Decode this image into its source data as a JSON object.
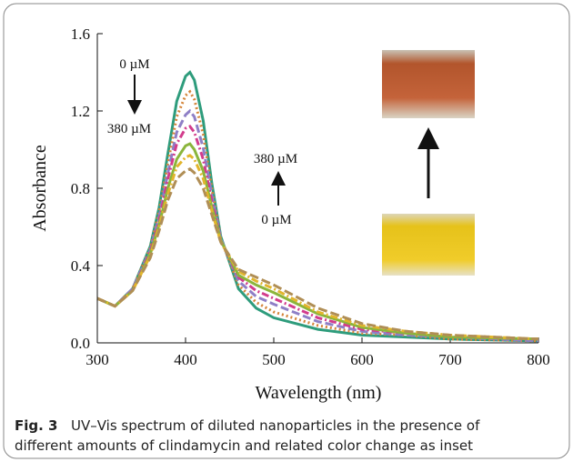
{
  "chart_data": {
    "type": "line",
    "x_label": "Wavelength (nm)",
    "y_label": "Absorbance",
    "x": [
      300,
      320,
      340,
      360,
      370,
      380,
      390,
      400,
      405,
      410,
      420,
      430,
      440,
      460,
      480,
      500,
      550,
      600,
      650,
      700,
      800
    ],
    "series": [
      {
        "color": "#2e9c7c",
        "dash": "none",
        "values": [
          0.23,
          0.19,
          0.28,
          0.5,
          0.7,
          0.98,
          1.25,
          1.38,
          1.4,
          1.36,
          1.15,
          0.82,
          0.55,
          0.28,
          0.18,
          0.13,
          0.07,
          0.04,
          0.03,
          0.02,
          0.01
        ]
      },
      {
        "color": "#d4843a",
        "dash": "2,3",
        "values": [
          0.23,
          0.19,
          0.28,
          0.49,
          0.68,
          0.93,
          1.17,
          1.28,
          1.3,
          1.26,
          1.08,
          0.79,
          0.54,
          0.3,
          0.21,
          0.16,
          0.09,
          0.05,
          0.04,
          0.02,
          0.01
        ]
      },
      {
        "color": "#8e7fc6",
        "dash": "9,4",
        "values": [
          0.23,
          0.19,
          0.28,
          0.48,
          0.65,
          0.88,
          1.09,
          1.18,
          1.2,
          1.17,
          1.01,
          0.76,
          0.54,
          0.32,
          0.24,
          0.2,
          0.11,
          0.06,
          0.04,
          0.03,
          0.01
        ]
      },
      {
        "color": "#d23c8c",
        "dash": "8,3,2,3",
        "values": [
          0.23,
          0.19,
          0.27,
          0.47,
          0.63,
          0.85,
          1.03,
          1.11,
          1.12,
          1.09,
          0.95,
          0.73,
          0.53,
          0.34,
          0.27,
          0.23,
          0.13,
          0.07,
          0.05,
          0.03,
          0.02
        ]
      },
      {
        "color": "#8bb53c",
        "dash": "none",
        "values": [
          0.23,
          0.19,
          0.27,
          0.46,
          0.61,
          0.8,
          0.95,
          1.02,
          1.03,
          1.0,
          0.89,
          0.7,
          0.53,
          0.35,
          0.3,
          0.26,
          0.15,
          0.08,
          0.05,
          0.03,
          0.02
        ]
      },
      {
        "color": "#e2b52c",
        "dash": "8,3,2,3",
        "values": [
          0.23,
          0.19,
          0.27,
          0.45,
          0.6,
          0.77,
          0.91,
          0.96,
          0.97,
          0.95,
          0.85,
          0.68,
          0.52,
          0.37,
          0.32,
          0.28,
          0.16,
          0.09,
          0.06,
          0.04,
          0.02
        ]
      },
      {
        "color": "#b08e55",
        "dash": "10,4",
        "values": [
          0.23,
          0.19,
          0.27,
          0.44,
          0.58,
          0.74,
          0.85,
          0.89,
          0.9,
          0.88,
          0.8,
          0.66,
          0.52,
          0.38,
          0.34,
          0.3,
          0.18,
          0.1,
          0.06,
          0.04,
          0.02
        ]
      }
    ],
    "xlim": [
      300,
      800
    ],
    "xticks": [
      300,
      400,
      500,
      600,
      700,
      800
    ],
    "ylim": [
      0,
      1.6
    ],
    "yticks": [
      {
        "value": 0,
        "label": "0.0"
      },
      0.4,
      0.8,
      1.2,
      1.6
    ],
    "annotations": [
      "0 µM",
      "380 µM",
      "380 µM",
      "0 µM"
    ],
    "caption": {
      "label": "Fig. 3",
      "line1": "UV–Vis spectrum of diluted nanoparticles in the presence of",
      "line2": "different amounts of clindamycin and related color change as inset"
    }
  }
}
